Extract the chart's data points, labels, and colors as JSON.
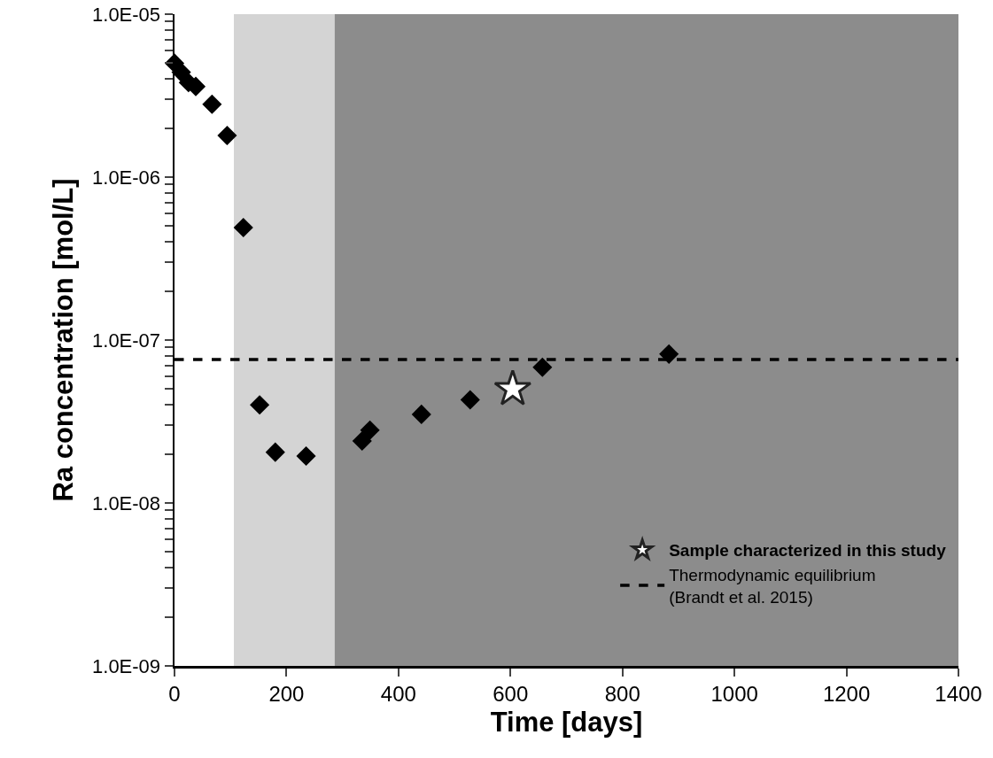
{
  "chart_data": {
    "type": "scatter",
    "xlabel": "Time [days]",
    "ylabel": "Ra concentration [mol/L]",
    "log": "y",
    "grid": false,
    "legend": "bottom right",
    "xlim": [
      0,
      1400
    ],
    "xticks": [
      0,
      200,
      400,
      600,
      800,
      1000,
      1200,
      1400
    ],
    "ylim": [
      1e-09,
      1e-05
    ],
    "yticks": [
      {
        "value": 1e-09,
        "label": "1.0E-09"
      },
      {
        "value": 2e-09,
        "label": null
      },
      {
        "value": 3e-09,
        "label": null
      },
      {
        "value": 4e-09,
        "label": null
      },
      {
        "value": 5e-09,
        "label": null
      },
      {
        "value": 6e-09,
        "label": null
      },
      {
        "value": 7e-09,
        "label": null
      },
      {
        "value": 8e-09,
        "label": null
      },
      {
        "value": 9e-09,
        "label": null
      },
      {
        "value": 1e-08,
        "label": "1.0E-08"
      },
      {
        "value": 2e-08,
        "label": null
      },
      {
        "value": 3e-08,
        "label": null
      },
      {
        "value": 4e-08,
        "label": null
      },
      {
        "value": 5e-08,
        "label": null
      },
      {
        "value": 6e-08,
        "label": null
      },
      {
        "value": 7e-08,
        "label": null
      },
      {
        "value": 8e-08,
        "label": null
      },
      {
        "value": 9e-08,
        "label": null
      },
      {
        "value": 1e-07,
        "label": "1.0E-07"
      },
      {
        "value": 2e-07,
        "label": null
      },
      {
        "value": 3e-07,
        "label": null
      },
      {
        "value": 4e-07,
        "label": null
      },
      {
        "value": 5e-07,
        "label": null
      },
      {
        "value": 6e-07,
        "label": null
      },
      {
        "value": 7e-07,
        "label": null
      },
      {
        "value": 8e-07,
        "label": null
      },
      {
        "value": 9e-07,
        "label": null
      },
      {
        "value": 1e-06,
        "label": "1.0E-06"
      },
      {
        "value": 2e-06,
        "label": null
      },
      {
        "value": 3e-06,
        "label": null
      },
      {
        "value": 4e-06,
        "label": null
      },
      {
        "value": 5e-06,
        "label": null
      },
      {
        "value": 6e-06,
        "label": null
      },
      {
        "value": 7e-06,
        "label": null
      },
      {
        "value": 8e-06,
        "label": null
      },
      {
        "value": 9e-06,
        "label": null
      },
      {
        "value": 1e-05,
        "label": "1.0E-05"
      }
    ],
    "series": [
      {
        "color": "#000000",
        "marker": "diamond",
        "x": [
          0,
          12,
          25,
          38,
          67,
          94,
          123,
          152,
          180,
          235,
          335,
          349,
          441,
          528,
          657,
          883
        ],
        "values": [
          5e-06,
          4.4e-06,
          3.8e-06,
          3.6e-06,
          2.8e-06,
          1.8e-06,
          4.9e-07,
          4e-08,
          2.05e-08,
          1.94e-08,
          2.4e-08,
          2.8e-08,
          3.5e-08,
          4.3e-08,
          6.8e-08,
          8.2e-08
        ]
      },
      {
        "name": "Sample characterized in this study",
        "color": "#ffffff",
        "marker": "star",
        "x": [
          604
        ],
        "values": [
          5e-08
        ]
      }
    ],
    "ref_lines": [
      {
        "axis": "y",
        "value": 7.6e-08,
        "label": "Thermodynamic equilibrium\n(Brandt et al. 2015)",
        "color": "#000000",
        "line_style": "dashed"
      }
    ],
    "bands": [
      {
        "axis": "x",
        "from": 106,
        "to": 286,
        "color": "#d4d4d4"
      },
      {
        "axis": "x",
        "from": 286,
        "to": 1400,
        "color": "#8c8c8c"
      }
    ]
  }
}
